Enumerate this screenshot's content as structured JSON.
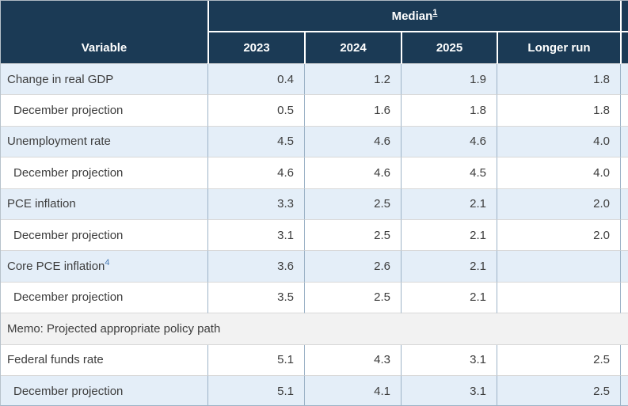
{
  "table": {
    "header": {
      "variable": "Variable",
      "median": "Median",
      "median_footnote": "1",
      "col_2023": "2023",
      "col_2024": "2024",
      "col_2025": "2025",
      "col_longer_run": "Longer run"
    },
    "rows": [
      {
        "label": "Change in real GDP",
        "values": [
          "0.4",
          "1.2",
          "1.9",
          "1.8"
        ]
      },
      {
        "label": "December projection",
        "values": [
          "0.5",
          "1.6",
          "1.8",
          "1.8"
        ]
      },
      {
        "label": "Unemployment rate",
        "values": [
          "4.5",
          "4.6",
          "4.6",
          "4.0"
        ]
      },
      {
        "label": "December projection",
        "values": [
          "4.6",
          "4.6",
          "4.5",
          "4.0"
        ]
      },
      {
        "label": "PCE inflation",
        "values": [
          "3.3",
          "2.5",
          "2.1",
          "2.0"
        ]
      },
      {
        "label": "December projection",
        "values": [
          "3.1",
          "2.5",
          "2.1",
          "2.0"
        ]
      },
      {
        "label": "Core PCE inflation",
        "footnote": "4",
        "values": [
          "3.6",
          "2.6",
          "2.1",
          ""
        ]
      },
      {
        "label": "December projection",
        "values": [
          "3.5",
          "2.5",
          "2.1",
          ""
        ]
      },
      {
        "label": "Memo: Projected appropriate policy path"
      },
      {
        "label": "Federal funds rate",
        "values": [
          "5.1",
          "4.3",
          "3.1",
          "2.5"
        ]
      },
      {
        "label": "December projection",
        "values": [
          "5.1",
          "4.1",
          "3.1",
          "2.5"
        ]
      }
    ]
  },
  "colors": {
    "header_background": "#1b3a55",
    "header_text": "#ffffff",
    "row_highlight": "#e4eef8",
    "memo_background": "#f2f2f2",
    "column_border": "#9db3c7",
    "row_border": "#d9d9d9",
    "footnote_link": "#4a7cb5",
    "body_text": "#3d3d3d"
  },
  "chart_data": {
    "type": "table",
    "title": "Median",
    "columns": [
      "Variable",
      "2023",
      "2024",
      "2025",
      "Longer run"
    ],
    "rows": [
      [
        "Change in real GDP",
        0.4,
        1.2,
        1.9,
        1.8
      ],
      [
        "December projection",
        0.5,
        1.6,
        1.8,
        1.8
      ],
      [
        "Unemployment rate",
        4.5,
        4.6,
        4.6,
        4.0
      ],
      [
        "December projection",
        4.6,
        4.6,
        4.5,
        4.0
      ],
      [
        "PCE inflation",
        3.3,
        2.5,
        2.1,
        2.0
      ],
      [
        "December projection",
        3.1,
        2.5,
        2.1,
        2.0
      ],
      [
        "Core PCE inflation",
        3.6,
        2.6,
        2.1,
        null
      ],
      [
        "December projection",
        3.5,
        2.5,
        2.1,
        null
      ],
      [
        "Memo: Projected appropriate policy path",
        null,
        null,
        null,
        null
      ],
      [
        "Federal funds rate",
        5.1,
        4.3,
        3.1,
        2.5
      ],
      [
        "December projection",
        5.1,
        4.1,
        3.1,
        2.5
      ]
    ]
  }
}
